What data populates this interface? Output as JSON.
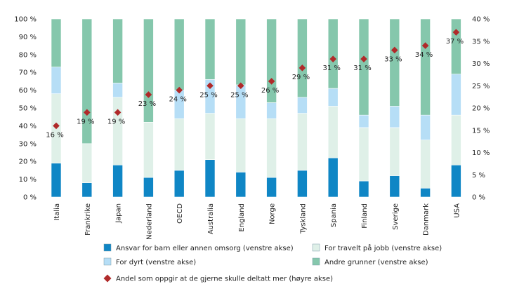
{
  "chart_data": {
    "type": "bar",
    "stacked": true,
    "categories": [
      "Italia",
      "Frankrike",
      "Japan",
      "Nederland",
      "OECD",
      "Australia",
      "England",
      "Norge",
      "Tyskland",
      "Spania",
      "Finland",
      "Sverige",
      "Danmark",
      "USA"
    ],
    "highlight_categories": [
      "OECD",
      "Norge"
    ],
    "highlight_color": "#2a8bc4",
    "ylim_left": [
      0,
      100
    ],
    "ylim_right": [
      0,
      40
    ],
    "left_ticks": [
      "0 %",
      "10 %",
      "20 %",
      "30 %",
      "40 %",
      "50 %",
      "60 %",
      "70 %",
      "80 %",
      "90 %",
      "100 %"
    ],
    "right_ticks": [
      "0 %",
      "5 %",
      "10 %",
      "15 %",
      "20 %",
      "25 %",
      "30 %",
      "35 %",
      "40 %"
    ],
    "grid": false,
    "legend_position": "bottom",
    "series": [
      {
        "name": "Ansvar for barn eller annen omsorg  (venstre akse)",
        "color": "#0f86c5",
        "values": [
          19,
          8,
          18,
          11,
          15,
          21,
          14,
          11,
          15,
          22,
          9,
          12,
          5,
          18
        ]
      },
      {
        "name": "For travelt på jobb (venstre akse)",
        "color": "#dff0e8",
        "values": [
          39,
          22,
          38,
          31,
          29,
          26,
          30,
          33,
          32,
          29,
          30,
          27,
          27,
          28
        ]
      },
      {
        "name": "For dyrt (venstre akse)",
        "color": "#b6def6",
        "values": [
          15,
          0,
          8,
          0,
          16,
          19,
          19,
          9,
          9,
          10,
          7,
          12,
          14,
          23
        ]
      },
      {
        "name": "Andre grunner (venstre akse)",
        "color": "#85c7ac",
        "values": [
          27,
          70,
          36,
          58,
          40,
          34,
          37,
          47,
          44,
          39,
          54,
          49,
          54,
          31
        ]
      }
    ],
    "line_series": {
      "name": "Andel som oppgir at de gjerne skulle deltatt mer (høyre akse)",
      "color": "#b02a2a",
      "axis": "right",
      "values": [
        16,
        19,
        19,
        23,
        24,
        25,
        25,
        26,
        29,
        31,
        31,
        33,
        34,
        37
      ],
      "labels": [
        "16 %",
        "19 %",
        "19 %",
        "23 %",
        "24 %",
        "25 %",
        "25 %",
        "26 %",
        "29 %",
        "31 %",
        "31 %",
        "33 %",
        "34 %",
        "37 %"
      ]
    }
  }
}
